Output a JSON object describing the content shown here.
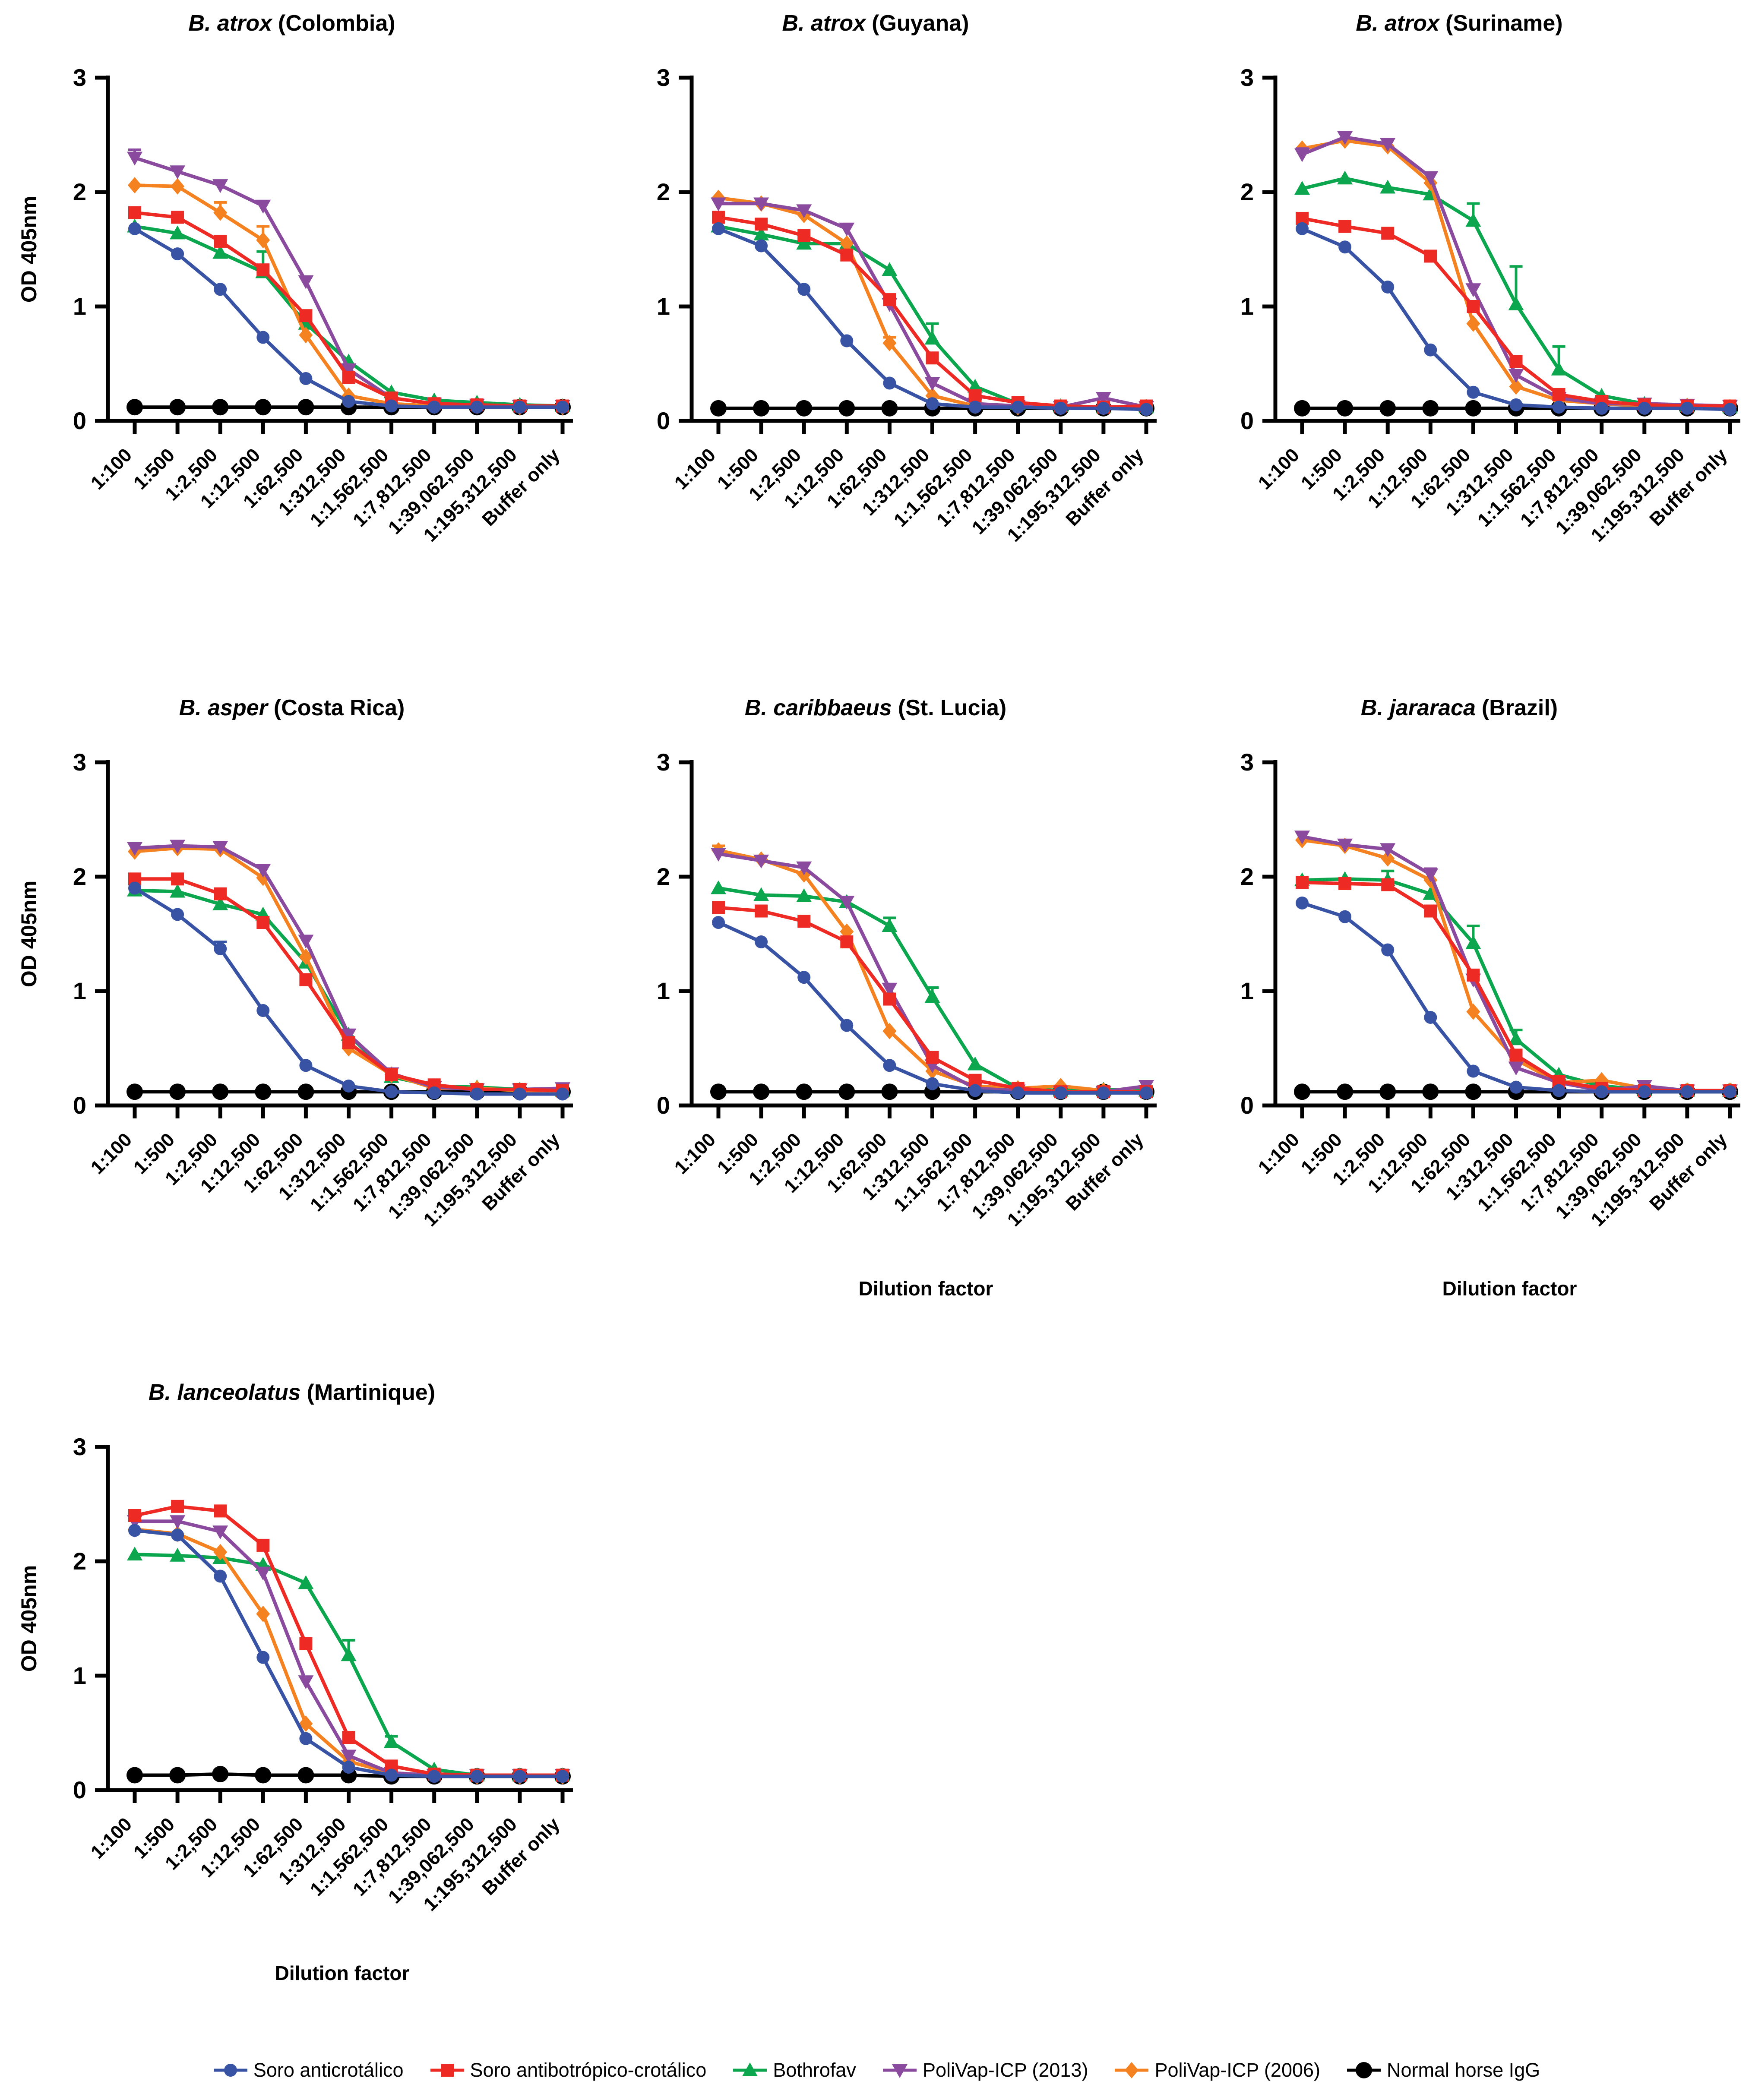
{
  "axis": {
    "ylabel": "OD 405nm",
    "xlabel": "Dilution factor",
    "yticks": [
      0,
      1,
      2,
      3
    ],
    "ylim": [
      0,
      3
    ]
  },
  "categories": [
    "1:100",
    "1:500",
    "1:2,500",
    "1:12,500",
    "1:62,500",
    "1:312,500",
    "1:1,562,500",
    "1:7,812,500",
    "1:39,062,500",
    "1:195,312,500",
    "Buffer only"
  ],
  "legend": {
    "items": [
      {
        "label": "Soro anticrotálico",
        "color": "#3853A4",
        "marker": "circle"
      },
      {
        "label": "Soro antibotrópico-crotálico",
        "color": "#EE2A24",
        "marker": "square"
      },
      {
        "label": "Bothrofav",
        "color": "#0CA64F",
        "marker": "triangle-up"
      },
      {
        "label": "PoliVap-ICP (2013)",
        "color": "#8A4B9E",
        "marker": "triangle-down"
      },
      {
        "label": "PoliVap-ICP (2006)",
        "color": "#F58220",
        "marker": "diamond"
      },
      {
        "label": "Normal horse IgG",
        "color": "#000000",
        "marker": "circle"
      }
    ]
  },
  "chart_data": [
    {
      "type": "line",
      "title_species": "B. atrox",
      "title_location": "(Colombia)",
      "show_ylabel": true,
      "show_xlabel": false,
      "series": [
        {
          "name": "Soro anticrotálico",
          "values": [
            1.68,
            1.46,
            1.15,
            0.73,
            0.37,
            0.17,
            0.13,
            0.12,
            0.12,
            0.12,
            0.12
          ]
        },
        {
          "name": "Soro antibotrópico-crotálico",
          "values": [
            1.82,
            1.78,
            1.57,
            1.32,
            0.92,
            0.38,
            0.2,
            0.15,
            0.14,
            0.13,
            0.13
          ]
        },
        {
          "name": "Bothrofav",
          "values": [
            1.7,
            1.64,
            1.47,
            1.3,
            0.85,
            0.52,
            0.25,
            0.18,
            0.16,
            0.14,
            0.13
          ],
          "err": [
            0,
            0,
            0.06,
            0.18,
            0,
            0,
            0,
            0,
            0,
            0,
            0
          ]
        },
        {
          "name": "PoliVap-ICP (2013)",
          "values": [
            2.3,
            2.18,
            2.06,
            1.88,
            1.22,
            0.45,
            0.2,
            0.15,
            0.14,
            0.13,
            0.13
          ],
          "err": [
            0.07,
            0,
            0,
            0,
            0,
            0,
            0,
            0,
            0,
            0,
            0
          ]
        },
        {
          "name": "PoliVap-ICP (2006)",
          "values": [
            2.06,
            2.05,
            1.82,
            1.58,
            0.75,
            0.22,
            0.15,
            0.13,
            0.13,
            0.12,
            0.12
          ],
          "err": [
            0,
            0,
            0.09,
            0.12,
            0,
            0,
            0,
            0,
            0,
            0,
            0
          ]
        },
        {
          "name": "Normal horse IgG",
          "values": [
            0.12,
            0.12,
            0.12,
            0.12,
            0.12,
            0.12,
            0.12,
            0.12,
            0.12,
            0.12,
            0.12
          ]
        }
      ]
    },
    {
      "type": "line",
      "title_species": "B. atrox",
      "title_location": "(Guyana)",
      "show_ylabel": false,
      "show_xlabel": false,
      "series": [
        {
          "name": "Soro anticrotálico",
          "values": [
            1.68,
            1.53,
            1.15,
            0.7,
            0.33,
            0.15,
            0.12,
            0.12,
            0.11,
            0.11,
            0.1
          ]
        },
        {
          "name": "Soro antibotrópico-crotálico",
          "values": [
            1.78,
            1.72,
            1.62,
            1.45,
            1.06,
            0.55,
            0.22,
            0.16,
            0.13,
            0.12,
            0.13
          ]
        },
        {
          "name": "Bothrofav",
          "values": [
            1.7,
            1.63,
            1.55,
            1.55,
            1.32,
            0.72,
            0.3,
            0.15,
            0.13,
            0.12,
            0.12
          ],
          "err": [
            0,
            0,
            0,
            0,
            0,
            0.13,
            0,
            0,
            0,
            0,
            0
          ]
        },
        {
          "name": "PoliVap-ICP (2013)",
          "values": [
            1.9,
            1.9,
            1.84,
            1.68,
            1.02,
            0.33,
            0.15,
            0.13,
            0.12,
            0.2,
            0.12
          ]
        },
        {
          "name": "PoliVap-ICP (2006)",
          "values": [
            1.95,
            1.9,
            1.8,
            1.55,
            0.68,
            0.22,
            0.13,
            0.12,
            0.12,
            0.12,
            0.12
          ],
          "err": [
            0,
            0,
            0,
            0,
            0.05,
            0,
            0,
            0,
            0,
            0,
            0
          ]
        },
        {
          "name": "Normal horse IgG",
          "values": [
            0.11,
            0.11,
            0.11,
            0.11,
            0.11,
            0.11,
            0.11,
            0.11,
            0.11,
            0.11,
            0.11
          ]
        }
      ]
    },
    {
      "type": "line",
      "title_species": "B. atrox",
      "title_location": "(Suriname)",
      "show_ylabel": false,
      "show_xlabel": false,
      "series": [
        {
          "name": "Soro anticrotálico",
          "values": [
            1.68,
            1.52,
            1.17,
            0.62,
            0.25,
            0.14,
            0.12,
            0.11,
            0.11,
            0.11,
            0.1
          ]
        },
        {
          "name": "Soro antibotrópico-crotálico",
          "values": [
            1.77,
            1.7,
            1.64,
            1.44,
            1.0,
            0.52,
            0.23,
            0.17,
            0.14,
            0.13,
            0.13
          ]
        },
        {
          "name": "Bothrofav",
          "values": [
            2.03,
            2.12,
            2.04,
            1.98,
            1.75,
            1.02,
            0.45,
            0.22,
            0.15,
            0.13,
            0.12
          ],
          "err": [
            0,
            0,
            0,
            0,
            0.15,
            0.33,
            0.2,
            0,
            0,
            0,
            0
          ]
        },
        {
          "name": "PoliVap-ICP (2013)",
          "values": [
            2.33,
            2.48,
            2.42,
            2.13,
            1.15,
            0.4,
            0.2,
            0.15,
            0.15,
            0.14,
            0.13
          ],
          "err": [
            0.05,
            0,
            0,
            0,
            0,
            0,
            0,
            0,
            0,
            0,
            0
          ]
        },
        {
          "name": "PoliVap-ICP (2006)",
          "values": [
            2.38,
            2.45,
            2.4,
            2.08,
            0.85,
            0.3,
            0.18,
            0.15,
            0.13,
            0.13,
            0.12
          ]
        },
        {
          "name": "Normal horse IgG",
          "values": [
            0.11,
            0.11,
            0.11,
            0.11,
            0.11,
            0.11,
            0.11,
            0.11,
            0.11,
            0.11,
            0.11
          ]
        }
      ]
    },
    {
      "type": "line",
      "title_species": "B. asper",
      "title_location": "(Costa Rica)",
      "show_ylabel": true,
      "show_xlabel": false,
      "series": [
        {
          "name": "Soro anticrotálico",
          "values": [
            1.9,
            1.67,
            1.37,
            0.83,
            0.35,
            0.17,
            0.12,
            0.11,
            0.1,
            0.1,
            0.1
          ],
          "err": [
            0,
            0,
            0.06,
            0,
            0,
            0,
            0,
            0,
            0,
            0,
            0
          ]
        },
        {
          "name": "Soro antibotrópico-crotálico",
          "values": [
            1.98,
            1.98,
            1.85,
            1.6,
            1.1,
            0.55,
            0.27,
            0.18,
            0.14,
            0.14,
            0.13
          ]
        },
        {
          "name": "Bothrofav",
          "values": [
            1.88,
            1.87,
            1.76,
            1.67,
            1.25,
            0.62,
            0.25,
            0.17,
            0.16,
            0.14,
            0.13
          ]
        },
        {
          "name": "PoliVap-ICP (2013)",
          "values": [
            2.25,
            2.27,
            2.26,
            2.06,
            1.44,
            0.62,
            0.28,
            0.16,
            0.14,
            0.14,
            0.15
          ]
        },
        {
          "name": "PoliVap-ICP (2006)",
          "values": [
            2.22,
            2.25,
            2.24,
            1.99,
            1.3,
            0.5,
            0.27,
            0.15,
            0.15,
            0.13,
            0.12
          ]
        },
        {
          "name": "Normal horse IgG",
          "values": [
            0.12,
            0.12,
            0.12,
            0.12,
            0.12,
            0.12,
            0.12,
            0.12,
            0.12,
            0.12,
            0.12
          ]
        }
      ]
    },
    {
      "type": "line",
      "title_species": "B. caribbaeus",
      "title_location": "(St. Lucia)",
      "show_ylabel": false,
      "show_xlabel": true,
      "series": [
        {
          "name": "Soro anticrotálico",
          "values": [
            1.6,
            1.43,
            1.12,
            0.7,
            0.35,
            0.19,
            0.13,
            0.11,
            0.11,
            0.11,
            0.11
          ]
        },
        {
          "name": "Soro antibotrópico-crotálico",
          "values": [
            1.73,
            1.7,
            1.61,
            1.43,
            0.93,
            0.42,
            0.22,
            0.15,
            0.12,
            0.12,
            0.12
          ]
        },
        {
          "name": "Bothrofav",
          "values": [
            1.9,
            1.84,
            1.83,
            1.78,
            1.57,
            0.95,
            0.36,
            0.15,
            0.13,
            0.14,
            0.13
          ],
          "err": [
            0,
            0,
            0,
            0,
            0.07,
            0.08,
            0,
            0,
            0,
            0,
            0
          ]
        },
        {
          "name": "PoliVap-ICP (2013)",
          "values": [
            2.2,
            2.14,
            2.08,
            1.78,
            1.02,
            0.35,
            0.15,
            0.13,
            0.12,
            0.12,
            0.17
          ]
        },
        {
          "name": "PoliVap-ICP (2006)",
          "values": [
            2.23,
            2.15,
            2.02,
            1.52,
            0.65,
            0.3,
            0.17,
            0.15,
            0.17,
            0.13,
            0.12
          ],
          "err": [
            0.04,
            0,
            0,
            0,
            0,
            0,
            0,
            0,
            0,
            0,
            0
          ]
        },
        {
          "name": "Normal horse IgG",
          "values": [
            0.12,
            0.12,
            0.12,
            0.12,
            0.12,
            0.12,
            0.12,
            0.12,
            0.12,
            0.12,
            0.12
          ]
        }
      ]
    },
    {
      "type": "line",
      "title_species": "B. jararaca",
      "title_location": "(Brazil)",
      "show_ylabel": false,
      "show_xlabel": true,
      "series": [
        {
          "name": "Soro anticrotálico",
          "values": [
            1.77,
            1.65,
            1.36,
            0.77,
            0.3,
            0.16,
            0.13,
            0.12,
            0.12,
            0.12,
            0.12
          ]
        },
        {
          "name": "Soro antibotrópico-crotálico",
          "values": [
            1.95,
            1.94,
            1.93,
            1.7,
            1.14,
            0.44,
            0.21,
            0.15,
            0.13,
            0.13,
            0.13
          ]
        },
        {
          "name": "Bothrofav",
          "values": [
            1.97,
            1.98,
            1.97,
            1.85,
            1.42,
            0.58,
            0.27,
            0.17,
            0.14,
            0.13,
            0.13
          ],
          "err": [
            0,
            0,
            0.08,
            0,
            0.15,
            0.08,
            0,
            0,
            0,
            0,
            0
          ]
        },
        {
          "name": "PoliVap-ICP (2013)",
          "values": [
            2.35,
            2.28,
            2.24,
            2.02,
            1.1,
            0.33,
            0.2,
            0.13,
            0.17,
            0.13,
            0.13
          ],
          "err": [
            0,
            0,
            0,
            0.05,
            0,
            0,
            0,
            0,
            0,
            0,
            0
          ]
        },
        {
          "name": "PoliVap-ICP (2006)",
          "values": [
            2.32,
            2.27,
            2.16,
            1.97,
            0.82,
            0.4,
            0.2,
            0.22,
            0.15,
            0.13,
            0.13
          ]
        },
        {
          "name": "Normal horse IgG",
          "values": [
            0.12,
            0.12,
            0.12,
            0.12,
            0.12,
            0.12,
            0.12,
            0.12,
            0.12,
            0.12,
            0.12
          ]
        }
      ]
    },
    {
      "type": "line",
      "title_species": "B. lanceolatus",
      "title_location": "(Martinique)",
      "show_ylabel": true,
      "show_xlabel": true,
      "series": [
        {
          "name": "Soro anticrotálico",
          "values": [
            2.27,
            2.23,
            1.87,
            1.16,
            0.45,
            0.2,
            0.13,
            0.12,
            0.12,
            0.12,
            0.12
          ]
        },
        {
          "name": "Soro antibotrópico-crotálico",
          "values": [
            2.4,
            2.48,
            2.44,
            2.14,
            1.28,
            0.46,
            0.21,
            0.14,
            0.13,
            0.13,
            0.13
          ]
        },
        {
          "name": "Bothrofav",
          "values": [
            2.06,
            2.05,
            2.03,
            1.97,
            1.81,
            1.18,
            0.42,
            0.18,
            0.13,
            0.13,
            0.13
          ],
          "err": [
            0,
            0,
            0,
            0,
            0,
            0.13,
            0.05,
            0,
            0,
            0,
            0
          ]
        },
        {
          "name": "PoliVap-ICP (2013)",
          "values": [
            2.35,
            2.35,
            2.26,
            1.9,
            0.95,
            0.3,
            0.15,
            0.13,
            0.13,
            0.13,
            0.13
          ]
        },
        {
          "name": "PoliVap-ICP (2006)",
          "values": [
            2.28,
            2.24,
            2.08,
            1.54,
            0.58,
            0.25,
            0.15,
            0.13,
            0.12,
            0.12,
            0.12
          ]
        },
        {
          "name": "Normal horse IgG",
          "values": [
            0.13,
            0.13,
            0.14,
            0.13,
            0.13,
            0.13,
            0.12,
            0.12,
            0.12,
            0.12,
            0.12
          ]
        }
      ]
    }
  ]
}
